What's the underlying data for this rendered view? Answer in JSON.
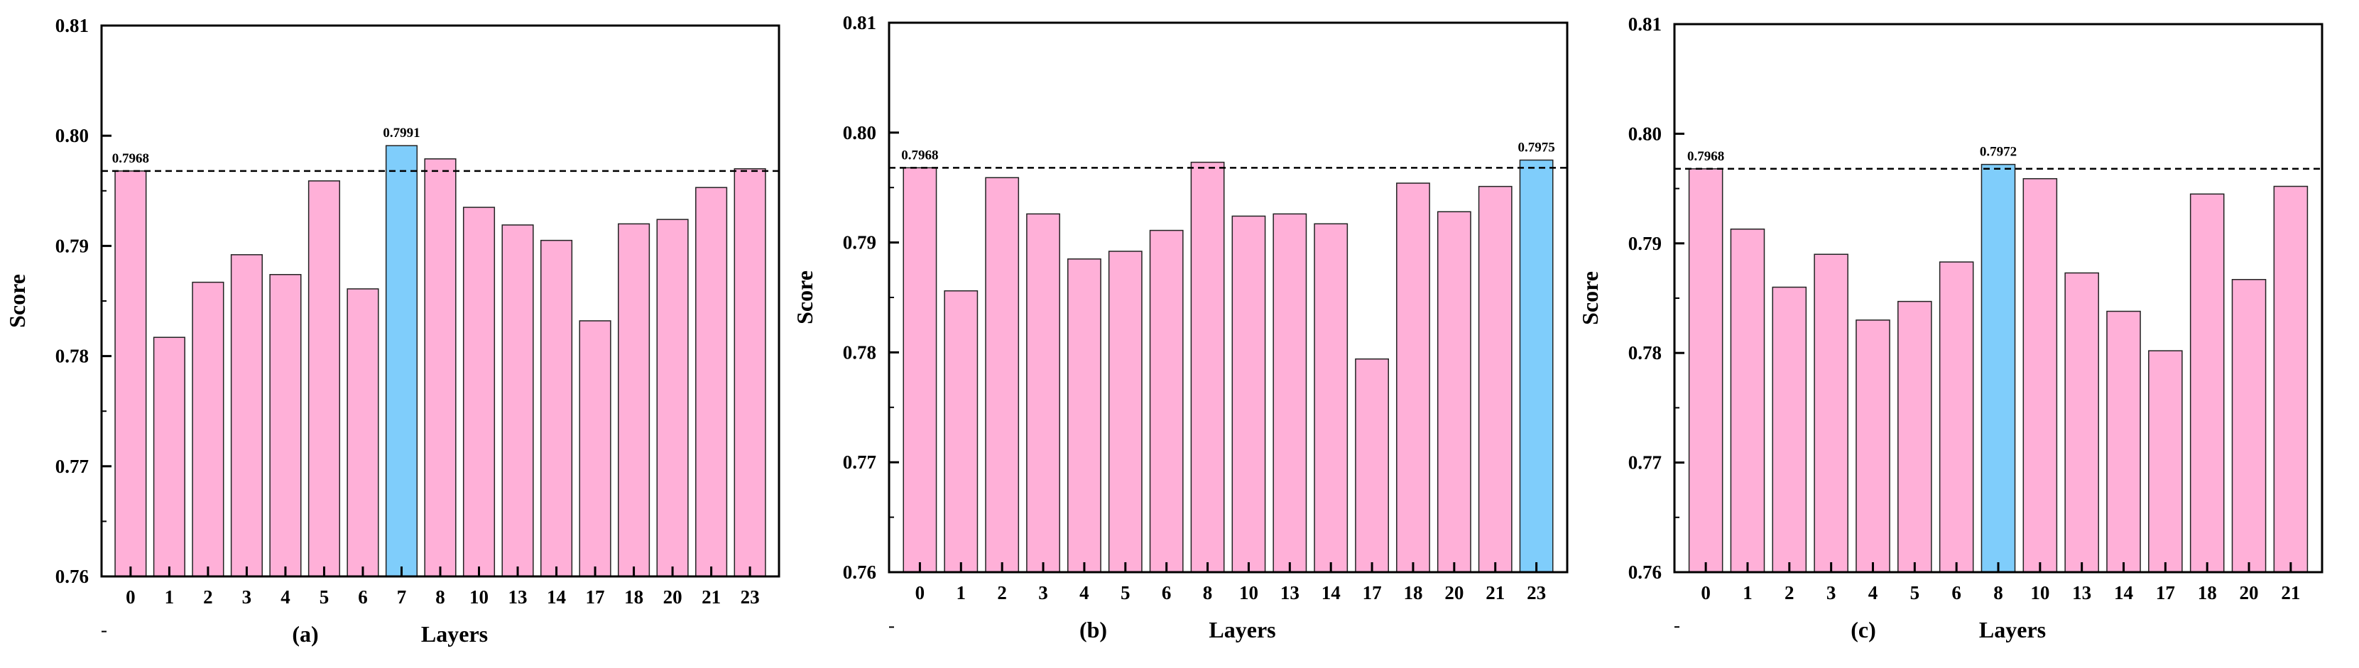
{
  "colors": {
    "bar": "#ffb0d8",
    "highlight": "#7fcdfb",
    "reference_line": "#000000",
    "bar_stroke": "#222222"
  },
  "chart_data": [
    {
      "type": "bar",
      "panel_label": "(a)",
      "xlabel": "Layers",
      "ylabel": "Score",
      "ylim": [
        0.76,
        0.81
      ],
      "yticks": [
        "0.76",
        "0.77",
        "0.78",
        "0.79",
        "0.80",
        "0.81"
      ],
      "grid": false,
      "categories": [
        "0",
        "1",
        "2",
        "3",
        "4",
        "5",
        "6",
        "7",
        "8",
        "10",
        "13",
        "14",
        "17",
        "18",
        "20",
        "21",
        "23"
      ],
      "values": [
        0.7968,
        0.7817,
        0.7867,
        0.7892,
        0.7874,
        0.7959,
        0.7861,
        0.7991,
        0.7979,
        0.7935,
        0.7919,
        0.7905,
        0.7832,
        0.792,
        0.7924,
        0.7953,
        0.797
      ],
      "highlight_index": 7,
      "reference_line": 0.7968,
      "annotations": [
        {
          "index": 0,
          "text": "0.7968"
        },
        {
          "index": 7,
          "text": "0.7991"
        }
      ]
    },
    {
      "type": "bar",
      "panel_label": "(b)",
      "xlabel": "Layers",
      "ylabel": "Score",
      "ylim": [
        0.76,
        0.81
      ],
      "yticks": [
        "0.76",
        "0.77",
        "0.78",
        "0.79",
        "0.80",
        "0.81"
      ],
      "grid": false,
      "categories": [
        "0",
        "1",
        "2",
        "3",
        "4",
        "5",
        "6",
        "8",
        "10",
        "13",
        "14",
        "17",
        "18",
        "20",
        "21",
        "23"
      ],
      "values": [
        0.7968,
        0.7856,
        0.7959,
        0.7926,
        0.7885,
        0.7892,
        0.7911,
        0.7973,
        0.7924,
        0.7926,
        0.7917,
        0.7794,
        0.7954,
        0.7928,
        0.7951,
        0.7975
      ],
      "highlight_index": 15,
      "reference_line": 0.7968,
      "annotations": [
        {
          "index": 0,
          "text": "0.7968"
        },
        {
          "index": 15,
          "text": "0.7975"
        }
      ]
    },
    {
      "type": "bar",
      "panel_label": "(c)",
      "xlabel": "Layers",
      "ylabel": "Score",
      "ylim": [
        0.76,
        0.81
      ],
      "yticks": [
        "0.76",
        "0.77",
        "0.78",
        "0.79",
        "0.80",
        "0.81"
      ],
      "grid": false,
      "categories": [
        "0",
        "1",
        "2",
        "3",
        "4",
        "5",
        "6",
        "8",
        "10",
        "13",
        "14",
        "17",
        "18",
        "20",
        "21"
      ],
      "values": [
        0.7968,
        0.7913,
        0.786,
        0.789,
        0.783,
        0.7847,
        0.7883,
        0.7972,
        0.7959,
        0.7873,
        0.7838,
        0.7802,
        0.7945,
        0.7867,
        0.7952
      ],
      "highlight_index": 7,
      "reference_line": 0.7968,
      "annotations": [
        {
          "index": 0,
          "text": "0.7968"
        },
        {
          "index": 7,
          "text": "0.7972"
        }
      ]
    }
  ]
}
